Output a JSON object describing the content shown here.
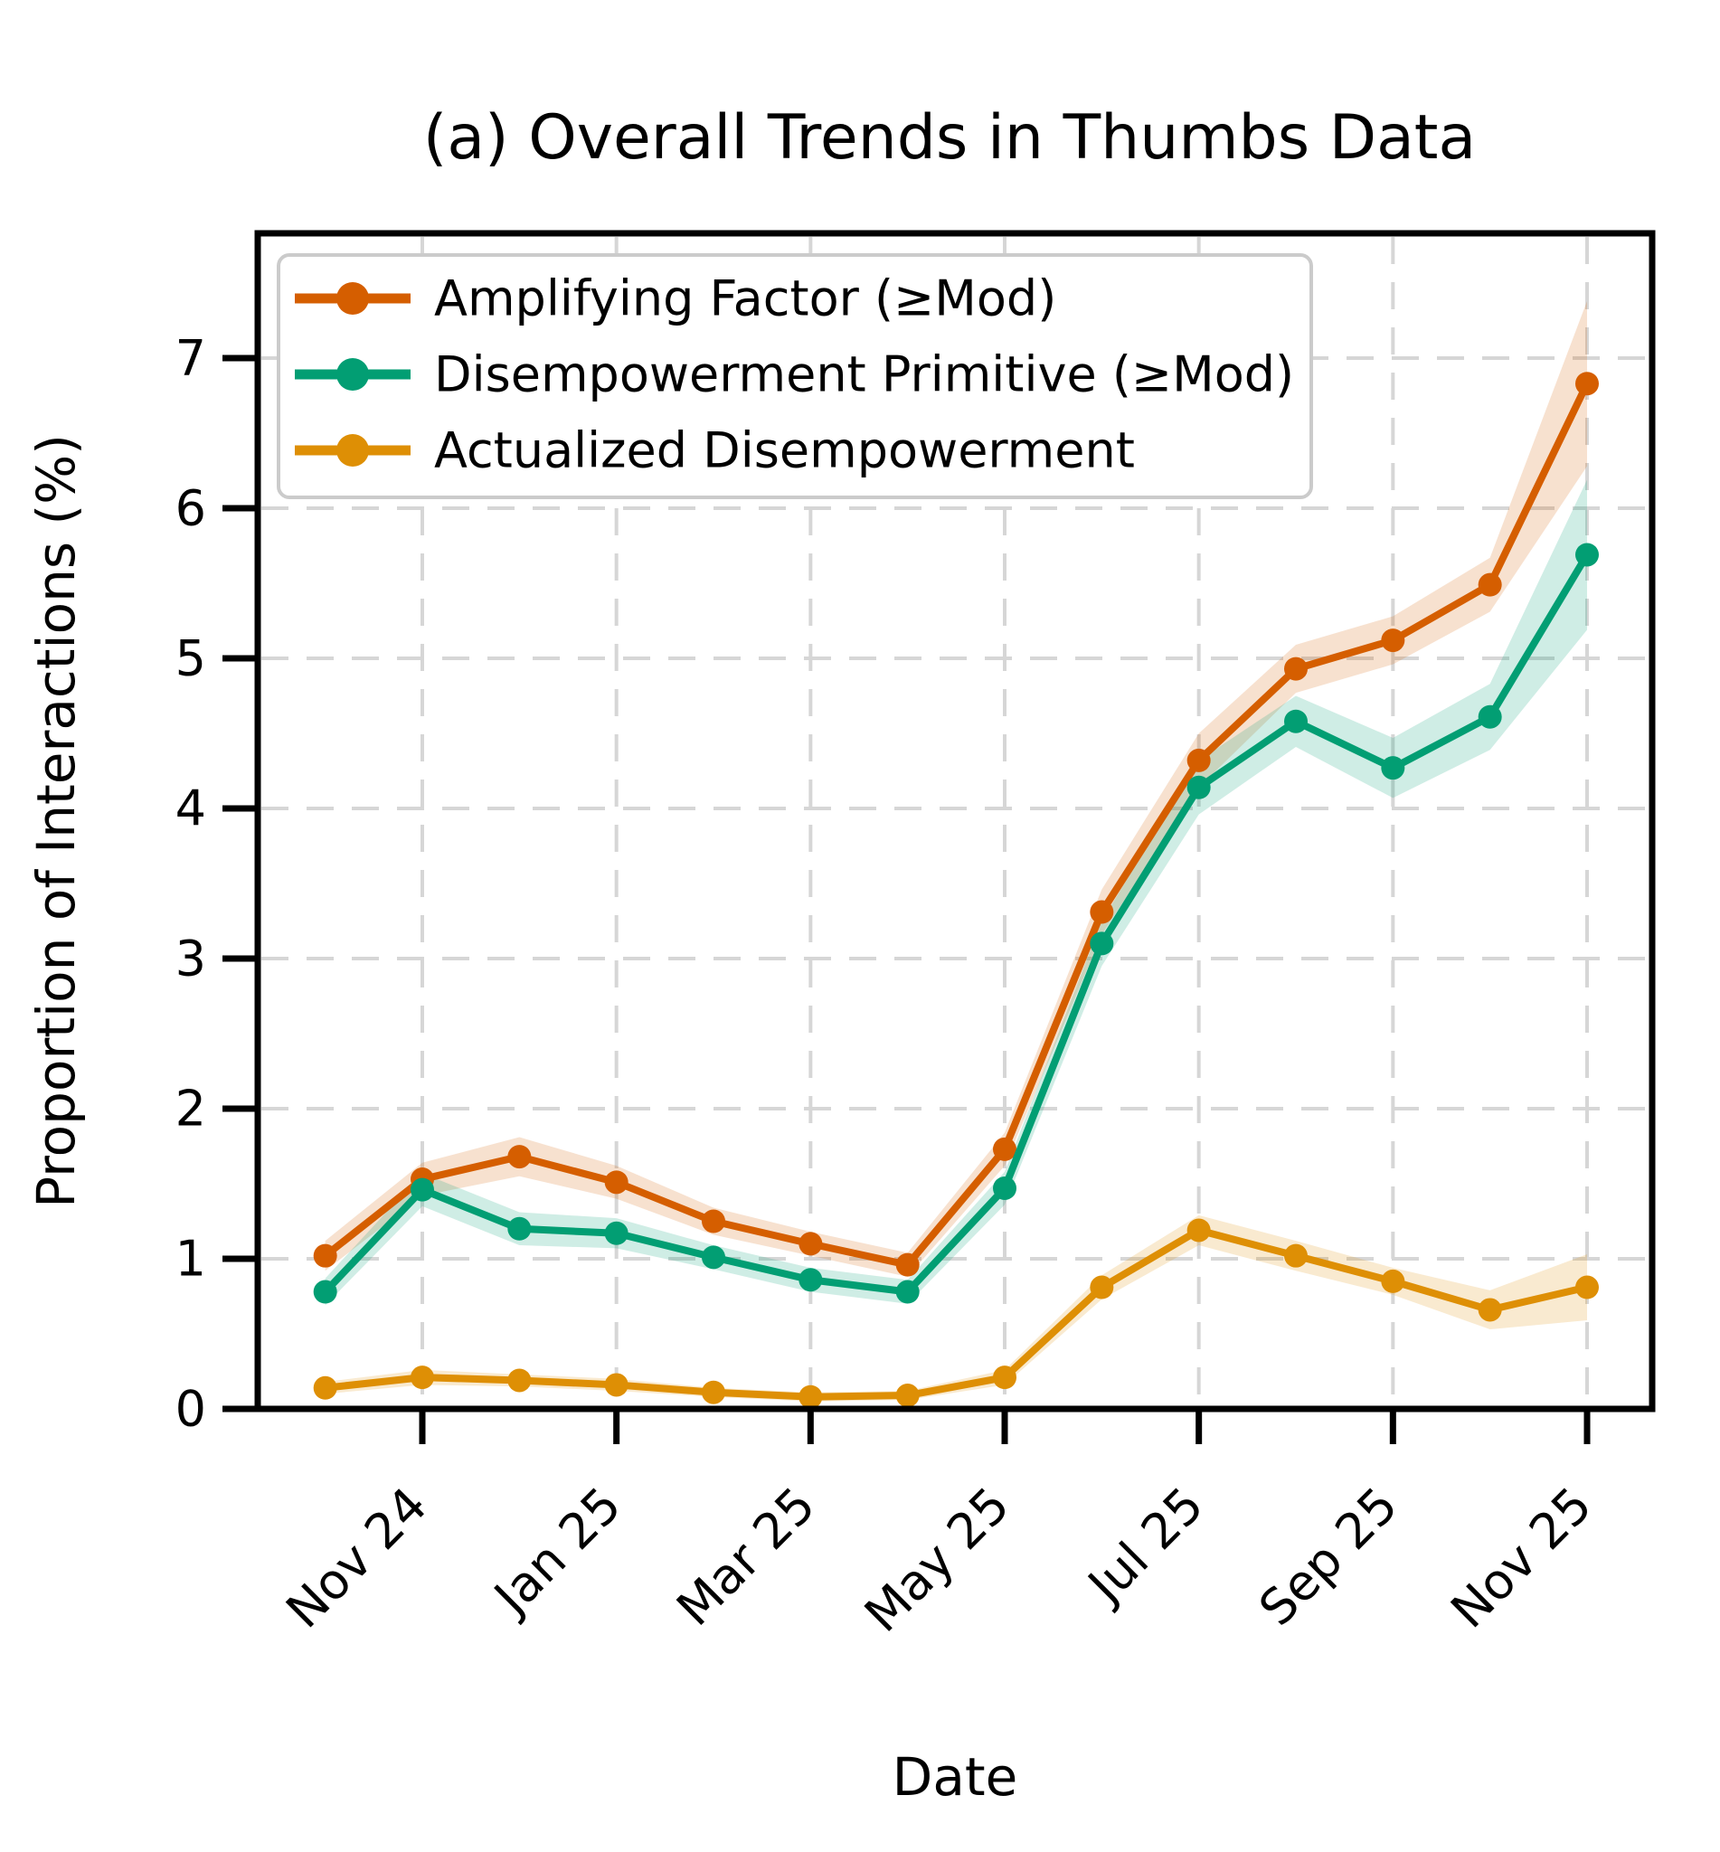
{
  "chart_data": {
    "type": "line",
    "title": "(a) Overall Trends in Thumbs Data",
    "xlabel": "Date",
    "ylabel": "Proportion of Interactions (%)",
    "x": [
      "Oct 24",
      "Nov 24",
      "Dec 24",
      "Jan 25",
      "Feb 25",
      "Mar 25",
      "Apr 25",
      "May 25",
      "Jun 25",
      "Jul 25",
      "Aug 25",
      "Sep 25",
      "Oct 25",
      "Nov 25"
    ],
    "x_tick_labels": [
      "Nov 24",
      "Jan 25",
      "Mar 25",
      "May 25",
      "Jul 25",
      "Sep 25",
      "Nov 25"
    ],
    "x_tick_indices": [
      1,
      3,
      5,
      7,
      9,
      11,
      13
    ],
    "yticks": [
      0,
      1,
      2,
      3,
      4,
      5,
      6,
      7
    ],
    "ylim": [
      0,
      7.83
    ],
    "grid": true,
    "grid_style": "dashed",
    "legend_position": "upper-left",
    "series": [
      {
        "name": "Amplifying Factor (≥Mod)",
        "color": "#D55E00",
        "values": [
          1.02,
          1.53,
          1.68,
          1.51,
          1.25,
          1.1,
          0.96,
          1.73,
          3.31,
          4.32,
          4.93,
          5.12,
          5.49,
          6.83
        ],
        "band_halfwidth": [
          0.1,
          0.11,
          0.13,
          0.11,
          0.09,
          0.08,
          0.08,
          0.11,
          0.15,
          0.18,
          0.16,
          0.16,
          0.18,
          0.55
        ]
      },
      {
        "name": "Disempowerment Primitive (≥Mod)",
        "color": "#029E73",
        "values": [
          0.78,
          1.46,
          1.2,
          1.17,
          1.01,
          0.86,
          0.78,
          1.47,
          3.1,
          4.14,
          4.58,
          4.27,
          4.61,
          5.69
        ],
        "band_halfwidth": [
          0.09,
          0.11,
          0.11,
          0.1,
          0.08,
          0.08,
          0.08,
          0.11,
          0.15,
          0.18,
          0.17,
          0.2,
          0.22,
          0.5
        ]
      },
      {
        "name": "Actualized Disempowerment",
        "color": "#DE8F05",
        "values": [
          0.14,
          0.21,
          0.19,
          0.16,
          0.11,
          0.08,
          0.09,
          0.21,
          0.81,
          1.19,
          1.02,
          0.85,
          0.66,
          0.81
        ],
        "band_halfwidth": [
          0.04,
          0.05,
          0.04,
          0.04,
          0.03,
          0.03,
          0.03,
          0.05,
          0.08,
          0.1,
          0.1,
          0.09,
          0.13,
          0.22
        ]
      }
    ]
  }
}
